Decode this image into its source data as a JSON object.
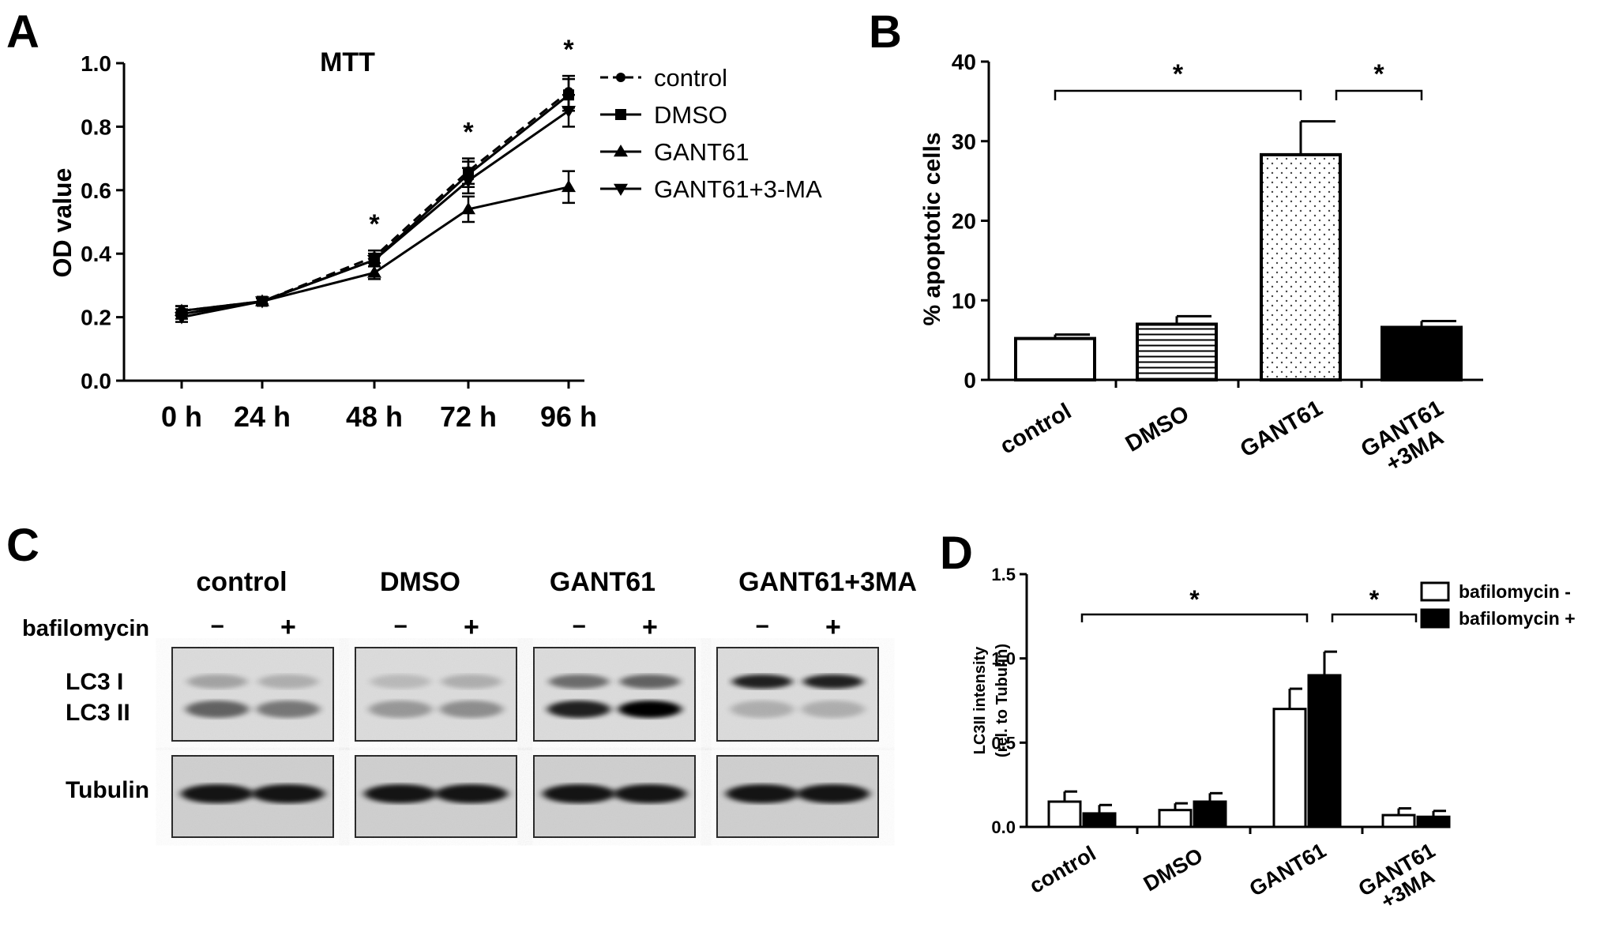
{
  "chart_data": [
    {
      "panel": "A",
      "type": "line",
      "title": "MTT",
      "xlabel": "",
      "ylabel": "OD value",
      "categories": [
        "0 h",
        "24 h",
        "48 h",
        "72 h",
        "96 h"
      ],
      "ylim": [
        0.0,
        1.0
      ],
      "yticks": [
        "0.0",
        "0.2",
        "0.4",
        "0.6",
        "0.8",
        "1.0"
      ],
      "legend_position": "top-right",
      "series": [
        {
          "name": "control",
          "marker": "circle",
          "dashed": true,
          "values": [
            0.22,
            0.25,
            0.39,
            0.66,
            0.91
          ],
          "errors": [
            0.015,
            0.01,
            0.02,
            0.04,
            0.05
          ]
        },
        {
          "name": "DMSO",
          "marker": "square",
          "dashed": false,
          "values": [
            0.21,
            0.25,
            0.38,
            0.65,
            0.9
          ],
          "errors": [
            0.015,
            0.01,
            0.02,
            0.04,
            0.05
          ]
        },
        {
          "name": "GANT61",
          "marker": "triangle-up",
          "dashed": false,
          "values": [
            0.22,
            0.25,
            0.34,
            0.54,
            0.61
          ],
          "errors": [
            0.015,
            0.01,
            0.02,
            0.04,
            0.05
          ]
        },
        {
          "name": "GANT61+3-MA",
          "marker": "triangle-down",
          "dashed": false,
          "values": [
            0.2,
            0.25,
            0.38,
            0.63,
            0.85
          ],
          "errors": [
            0.015,
            0.01,
            0.02,
            0.04,
            0.05
          ]
        }
      ],
      "significance": [
        {
          "label": "*",
          "category_index": 2
        },
        {
          "label": "*",
          "category_index": 3
        },
        {
          "label": "*",
          "category_index": 4
        }
      ]
    },
    {
      "panel": "B",
      "type": "bar",
      "xlabel": "",
      "ylabel": "% apoptotic cells",
      "categories": [
        "control",
        "DMSO",
        "GANT61",
        "GANT61\n+3MA"
      ],
      "ylim": [
        0,
        40
      ],
      "yticks": [
        "0",
        "10",
        "20",
        "30",
        "40"
      ],
      "values": [
        5.2,
        7.0,
        28.3,
        6.6
      ],
      "errors": [
        0.5,
        1.0,
        4.2,
        0.8
      ],
      "fills": [
        "white",
        "horizontal-lines",
        "dots",
        "black"
      ],
      "significance": [
        {
          "label": "*",
          "from": 0,
          "to": 2
        },
        {
          "label": "*",
          "from": 2,
          "to": 3
        }
      ]
    },
    {
      "panel": "D",
      "type": "bar",
      "xlabel": "",
      "ylabel": "LC3II intensity\n(rel. to Tubulin)",
      "categories": [
        "control",
        "DMSO",
        "GANT61",
        "GANT61\n+3MA"
      ],
      "ylim": [
        0.0,
        1.5
      ],
      "yticks": [
        "0.0",
        "0.5",
        "1.0",
        "1.5"
      ],
      "legend_position": "top-right",
      "series": [
        {
          "name": "bafilomycin -",
          "color": "#ffffff",
          "values": [
            0.15,
            0.1,
            0.7,
            0.07
          ],
          "errors": [
            0.06,
            0.04,
            0.12,
            0.04
          ]
        },
        {
          "name": "bafilomycin +",
          "color": "#000000",
          "values": [
            0.08,
            0.15,
            0.9,
            0.06
          ],
          "errors": [
            0.05,
            0.05,
            0.14,
            0.035
          ]
        }
      ],
      "significance": [
        {
          "label": "*",
          "from": 0,
          "to": 2
        },
        {
          "label": "*",
          "from": 2,
          "to": 3
        }
      ]
    }
  ],
  "panels": {
    "a": "A",
    "b": "B",
    "c": "C",
    "d": "D"
  },
  "blot": {
    "groups": [
      "control",
      "DMSO",
      "GANT61",
      "GANT61+3MA"
    ],
    "treatment_label": "bafilomycin",
    "minus": "−",
    "plus": "+",
    "band_labels": [
      "LC3 I",
      "LC3 II"
    ],
    "loading_label": "Tubulin",
    "lc3_upper_intensity": [
      [
        0.25,
        0.2
      ],
      [
        0.15,
        0.2
      ],
      [
        0.5,
        0.55
      ],
      [
        0.85,
        0.85
      ]
    ],
    "lc3_lower_intensity": [
      [
        0.55,
        0.45
      ],
      [
        0.3,
        0.35
      ],
      [
        0.85,
        1.0
      ],
      [
        0.2,
        0.2
      ]
    ]
  }
}
